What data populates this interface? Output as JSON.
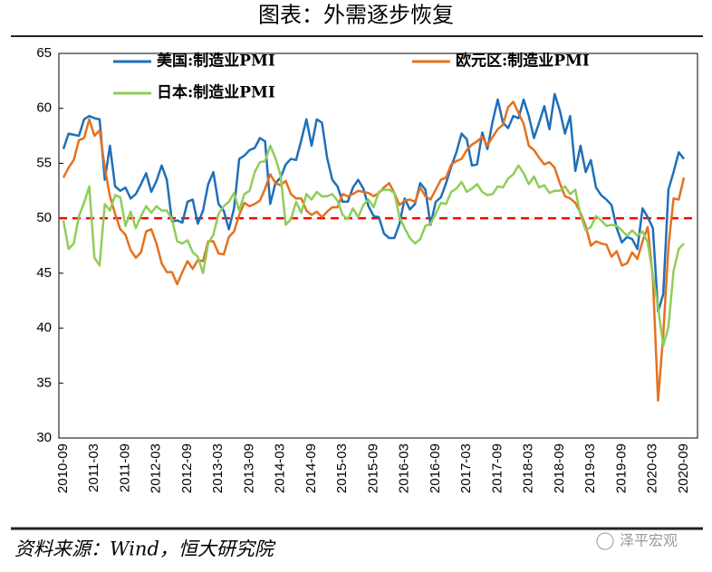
{
  "chart_data": {
    "type": "line",
    "title": "图表：外需逐步恢复",
    "source": "资料来源：Wind，恒大研究院",
    "watermark": "泽平宏观",
    "categories": [
      "2010-09",
      null,
      null,
      null,
      null,
      null,
      "2011-03",
      null,
      null,
      null,
      null,
      null,
      "2011-09",
      null,
      null,
      null,
      null,
      null,
      "2012-03",
      null,
      null,
      null,
      null,
      null,
      "2012-09",
      null,
      null,
      null,
      null,
      null,
      "2013-03",
      null,
      null,
      null,
      null,
      null,
      "2013-09",
      null,
      null,
      null,
      null,
      null,
      "2014-03",
      null,
      null,
      null,
      null,
      null,
      "2014-09",
      null,
      null,
      null,
      null,
      null,
      "2015-03",
      null,
      null,
      null,
      null,
      null,
      "2015-09",
      null,
      null,
      null,
      null,
      null,
      "2016-03",
      null,
      null,
      null,
      null,
      null,
      "2016-09",
      null,
      null,
      null,
      null,
      null,
      "2017-03",
      null,
      null,
      null,
      null,
      null,
      "2017-09",
      null,
      null,
      null,
      null,
      null,
      "2018-03",
      null,
      null,
      null,
      null,
      null,
      "2018-09",
      null,
      null,
      null,
      null,
      null,
      "2019-03",
      null,
      null,
      null,
      null,
      null,
      "2019-09",
      null,
      null,
      null,
      null,
      null,
      "2020-03",
      null,
      null,
      null,
      null,
      null,
      "2020-09"
    ],
    "series": [
      {
        "name": "美国:制造业PMI",
        "color": "#1f6fb8",
        "values": [
          56.3,
          57.7,
          57.6,
          57.5,
          59.0,
          59.3,
          59.1,
          59.0,
          53.5,
          56.6,
          52.9,
          52.5,
          52.8,
          51.8,
          52.2,
          53.1,
          54.1,
          52.4,
          53.4,
          54.8,
          53.5,
          49.7,
          49.8,
          49.6,
          51.5,
          51.7,
          49.5,
          50.7,
          53.1,
          54.2,
          51.3,
          50.7,
          49.0,
          50.9,
          55.4,
          55.7,
          56.2,
          56.4,
          57.3,
          57.0,
          51.3,
          53.2,
          53.7,
          54.9,
          55.4,
          55.3,
          57.1,
          59.0,
          56.6,
          59.0,
          58.7,
          55.5,
          53.5,
          52.9,
          51.5,
          51.5,
          52.8,
          53.5,
          52.7,
          51.1,
          50.2,
          50.1,
          48.6,
          48.2,
          48.2,
          49.5,
          51.8,
          50.8,
          51.3,
          53.2,
          52.6,
          49.4,
          51.5,
          51.9,
          53.2,
          54.7,
          56.0,
          57.7,
          57.2,
          54.8,
          54.9,
          57.8,
          56.3,
          58.8,
          60.8,
          58.7,
          58.2,
          59.3,
          59.1,
          60.8,
          59.3,
          57.3,
          58.7,
          60.2,
          58.1,
          61.3,
          59.8,
          57.7,
          59.3,
          54.3,
          56.6,
          54.2,
          55.3,
          52.8,
          52.1,
          51.7,
          51.2,
          49.1,
          47.8,
          48.3,
          48.1,
          47.2,
          50.9,
          50.1,
          49.1,
          41.5,
          43.1,
          52.6,
          54.2,
          56.0,
          55.4
        ]
      },
      {
        "name": "欧元区:制造业PMI",
        "color": "#e5711e",
        "values": [
          53.7,
          54.6,
          55.3,
          57.1,
          57.3,
          59.0,
          57.5,
          58.0,
          54.6,
          52.0,
          50.4,
          49.0,
          48.5,
          47.1,
          46.4,
          46.9,
          48.8,
          49.0,
          47.7,
          45.9,
          45.1,
          45.1,
          44.0,
          45.1,
          46.1,
          45.4,
          46.2,
          46.1,
          47.9,
          47.9,
          46.8,
          46.7,
          48.3,
          48.8,
          50.3,
          51.4,
          51.1,
          51.3,
          51.6,
          52.7,
          54.0,
          53.2,
          53.0,
          53.4,
          52.2,
          51.8,
          51.8,
          50.7,
          50.3,
          50.6,
          50.1,
          50.6,
          51.0,
          51.0,
          52.2,
          52.0,
          52.2,
          52.5,
          52.4,
          52.3,
          52.0,
          52.3,
          52.8,
          53.2,
          52.3,
          51.2,
          51.6,
          51.7,
          51.5,
          52.8,
          52.0,
          51.7,
          52.6,
          53.5,
          53.7,
          54.9,
          55.2,
          55.4,
          56.2,
          56.7,
          57.0,
          57.4,
          56.6,
          57.4,
          58.1,
          58.5,
          60.1,
          60.6,
          59.6,
          58.6,
          56.6,
          56.2,
          55.5,
          54.9,
          55.1,
          54.6,
          53.2,
          52.0,
          51.8,
          51.4,
          50.5,
          49.3,
          47.5,
          47.9,
          47.7,
          47.6,
          46.5,
          47.0,
          45.7,
          45.9,
          46.9,
          46.3,
          47.9,
          49.2,
          44.5,
          33.4,
          39.4,
          47.4,
          51.8,
          51.7,
          53.7
        ]
      },
      {
        "name": "日本:制造业PMI",
        "color": "#8fcd5a",
        "values": [
          49.8,
          47.2,
          47.7,
          50.2,
          51.4,
          52.9,
          46.4,
          45.7,
          51.3,
          50.7,
          52.1,
          51.9,
          49.3,
          50.6,
          49.1,
          50.2,
          51.1,
          50.5,
          51.1,
          50.7,
          50.7,
          49.9,
          47.9,
          47.7,
          48.0,
          46.9,
          46.5,
          45.0,
          47.7,
          48.5,
          50.4,
          51.1,
          51.5,
          52.3,
          50.7,
          52.2,
          52.5,
          54.2,
          55.1,
          55.2,
          56.6,
          55.5,
          53.9,
          49.4,
          49.9,
          51.5,
          50.5,
          52.2,
          51.7,
          52.4,
          52.0,
          52.0,
          52.2,
          51.6,
          50.3,
          49.9,
          50.9,
          50.1,
          51.2,
          51.7,
          51.0,
          52.4,
          52.6,
          52.6,
          52.3,
          50.1,
          49.1,
          48.2,
          47.7,
          48.1,
          49.3,
          49.5,
          50.4,
          51.4,
          51.3,
          52.4,
          52.7,
          53.3,
          52.4,
          52.7,
          53.1,
          52.4,
          52.1,
          52.2,
          52.9,
          52.8,
          53.6,
          54.0,
          54.8,
          54.1,
          53.1,
          53.8,
          52.8,
          53.0,
          52.3,
          52.5,
          52.5,
          52.9,
          52.2,
          52.6,
          50.3,
          48.9,
          49.2,
          50.2,
          49.8,
          49.3,
          49.4,
          49.3,
          48.9,
          48.4,
          48.9,
          48.4,
          48.8,
          47.8,
          44.8,
          41.9,
          38.4,
          40.1,
          45.2,
          47.2,
          47.7
        ]
      }
    ],
    "reference_line": {
      "value": 50,
      "color": "#ff0000"
    },
    "ylim": [
      30,
      65
    ],
    "yticks": [
      30,
      35,
      40,
      45,
      50,
      55,
      60,
      65
    ],
    "grid": false
  }
}
